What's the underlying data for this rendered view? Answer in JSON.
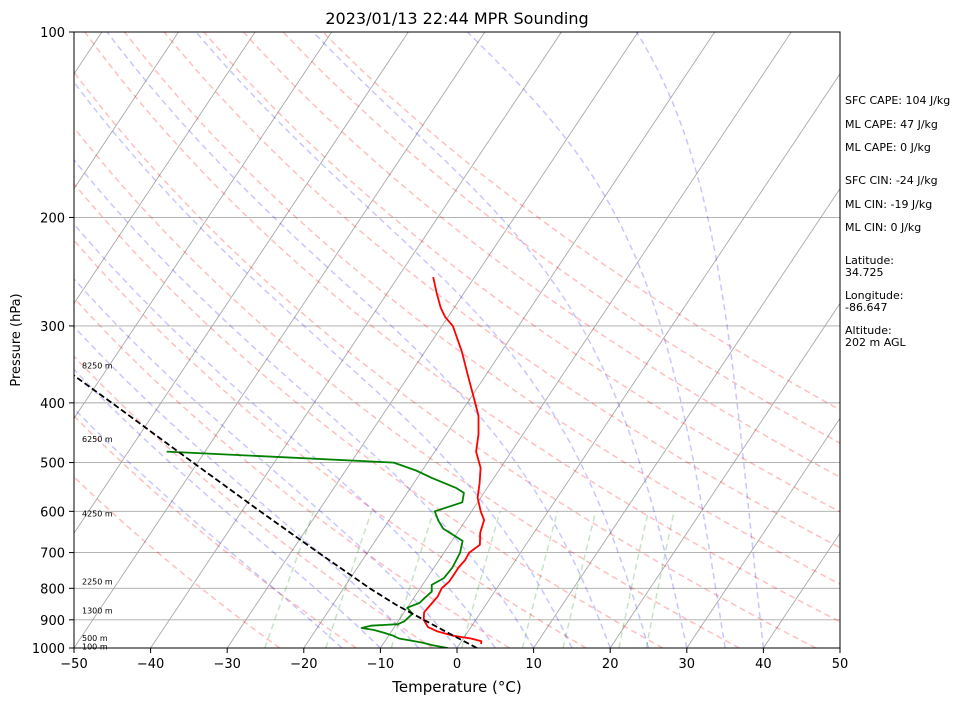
{
  "chart_data": {
    "type": "line",
    "title": "2023/01/13 22:44 MPR Sounding",
    "xlabel": "Temperature (°C)",
    "ylabel": "Pressure (hPa)",
    "xlim": [
      -50,
      50
    ],
    "ylim": [
      1000,
      100
    ],
    "y_scale": "log",
    "skew": "skew-T log-P",
    "x_ticks": [
      -50,
      -40,
      -30,
      -20,
      -10,
      0,
      10,
      20,
      30,
      40,
      50
    ],
    "x_tick_labels": [
      "−50",
      "−40",
      "−30",
      "−20",
      "−10",
      "0",
      "10",
      "20",
      "30",
      "40",
      "50"
    ],
    "y_ticks": [
      1000,
      900,
      800,
      700,
      600,
      500,
      400,
      300,
      200,
      100
    ],
    "y_tick_labels": [
      "1000",
      "900",
      "800",
      "700",
      "600",
      "500",
      "400",
      "300",
      "200",
      "100"
    ],
    "grid": true,
    "series": [
      {
        "role": "temperature",
        "color": "#ff0000",
        "points": [
          {
            "p": 985,
            "t": 2.8
          },
          {
            "p": 975,
            "t": 2.6
          },
          {
            "p": 965,
            "t": 1.0
          },
          {
            "p": 955,
            "t": -1.6
          },
          {
            "p": 940,
            "t": -4.0
          },
          {
            "p": 925,
            "t": -5.6
          },
          {
            "p": 900,
            "t": -6.8
          },
          {
            "p": 875,
            "t": -7.4
          },
          {
            "p": 850,
            "t": -7.2
          },
          {
            "p": 825,
            "t": -7.0
          },
          {
            "p": 800,
            "t": -7.2
          },
          {
            "p": 780,
            "t": -6.8
          },
          {
            "p": 760,
            "t": -6.8
          },
          {
            "p": 740,
            "t": -6.8
          },
          {
            "p": 720,
            "t": -6.6
          },
          {
            "p": 700,
            "t": -6.7
          },
          {
            "p": 680,
            "t": -6.0
          },
          {
            "p": 650,
            "t": -7.0
          },
          {
            "p": 620,
            "t": -7.6
          },
          {
            "p": 600,
            "t": -8.8
          },
          {
            "p": 570,
            "t": -10.4
          },
          {
            "p": 540,
            "t": -11.4
          },
          {
            "p": 510,
            "t": -12.6
          },
          {
            "p": 480,
            "t": -14.6
          },
          {
            "p": 450,
            "t": -15.8
          },
          {
            "p": 420,
            "t": -17.4
          },
          {
            "p": 390,
            "t": -19.8
          },
          {
            "p": 360,
            "t": -22.4
          },
          {
            "p": 330,
            "t": -25.2
          },
          {
            "p": 300,
            "t": -28.6
          },
          {
            "p": 290,
            "t": -30.4
          },
          {
            "p": 280,
            "t": -31.8
          },
          {
            "p": 265,
            "t": -33.6
          },
          {
            "p": 250,
            "t": -35.4
          }
        ]
      },
      {
        "role": "dewpoint",
        "color": "#008000",
        "points": [
          {
            "p": 1000,
            "t": -1.2
          },
          {
            "p": 990,
            "t": -3.4
          },
          {
            "p": 980,
            "t": -5.0
          },
          {
            "p": 965,
            "t": -8.4
          },
          {
            "p": 955,
            "t": -9.4
          },
          {
            "p": 945,
            "t": -10.8
          },
          {
            "p": 935,
            "t": -12.4
          },
          {
            "p": 928,
            "t": -14.2
          },
          {
            "p": 920,
            "t": -13.2
          },
          {
            "p": 915,
            "t": -9.8
          },
          {
            "p": 905,
            "t": -9.2
          },
          {
            "p": 880,
            "t": -8.8
          },
          {
            "p": 860,
            "t": -10.0
          },
          {
            "p": 845,
            "t": -8.8
          },
          {
            "p": 830,
            "t": -8.6
          },
          {
            "p": 810,
            "t": -8.2
          },
          {
            "p": 790,
            "t": -8.8
          },
          {
            "p": 770,
            "t": -7.8
          },
          {
            "p": 740,
            "t": -7.6
          },
          {
            "p": 700,
            "t": -7.9
          },
          {
            "p": 670,
            "t": -8.6
          },
          {
            "p": 640,
            "t": -12.2
          },
          {
            "p": 620,
            "t": -13.6
          },
          {
            "p": 600,
            "t": -14.8
          },
          {
            "p": 580,
            "t": -12.0
          },
          {
            "p": 560,
            "t": -12.6
          },
          {
            "p": 550,
            "t": -14.0
          },
          {
            "p": 530,
            "t": -18.0
          },
          {
            "p": 515,
            "t": -20.8
          },
          {
            "p": 500,
            "t": -24.4
          },
          {
            "p": 480,
            "t": -55.0
          }
        ]
      },
      {
        "role": "parcel",
        "color": "#000000",
        "style": "dashed",
        "points": [
          {
            "p": 1000,
            "t": 2.6
          },
          {
            "p": 950,
            "t": -2.0
          },
          {
            "p": 900,
            "t": -6.8
          },
          {
            "p": 850,
            "t": -11.8
          },
          {
            "p": 800,
            "t": -16.6
          },
          {
            "p": 700,
            "t": -26.4
          },
          {
            "p": 600,
            "t": -37.6
          },
          {
            "p": 500,
            "t": -50.6
          },
          {
            "p": 400,
            "t": -66.4
          },
          {
            "p": 280,
            "t": -92.0
          }
        ]
      }
    ],
    "dry_adiabats_k": [
      250,
      260,
      270,
      280,
      290,
      300,
      310,
      320,
      330,
      340,
      350,
      360,
      370,
      380,
      390
    ],
    "moist_adiabats_c": [
      -15,
      -10,
      -5,
      0,
      5,
      10,
      15,
      20,
      25,
      30,
      35,
      40
    ],
    "mixing_ratios_gkg": [
      0.5,
      1,
      2,
      4,
      7,
      10,
      16,
      20
    ],
    "height_labels": [
      {
        "p": 995,
        "label": "100 m"
      },
      {
        "p": 963,
        "label": "500 m"
      },
      {
        "p": 870,
        "label": "1300 m"
      },
      {
        "p": 780,
        "label": "2250 m"
      },
      {
        "p": 605,
        "label": "4250 m"
      },
      {
        "p": 458,
        "label": "6250 m"
      },
      {
        "p": 348,
        "label": "8250 m"
      }
    ],
    "colors": {
      "temperature": "#ff0000",
      "dewpoint": "#008000",
      "parcel": "#000000",
      "isotherm": "#a9a9a9",
      "isobar": "#a9a9a9",
      "dry_adiabat": "#ff0000",
      "moist_adiabat": "#0000ff",
      "mixing_ratio": "#008000"
    }
  },
  "side_panel": {
    "sfc_cape": "SFC CAPE: 104 J/kg",
    "ml_cape_1": "ML CAPE: 47 J/kg",
    "ml_cape_2": "ML CAPE: 0 J/kg",
    "sfc_cin": "SFC CIN: -24 J/kg",
    "ml_cin_1": "ML CIN: -19 J/kg",
    "ml_cin_2": "ML CIN: 0 J/kg",
    "latitude_label": "Latitude:",
    "latitude_value": "34.725",
    "longitude_label": "Longitude:",
    "longitude_value": "-86.647",
    "altitude_label": "Altitude:",
    "altitude_value": "202 m AGL"
  }
}
